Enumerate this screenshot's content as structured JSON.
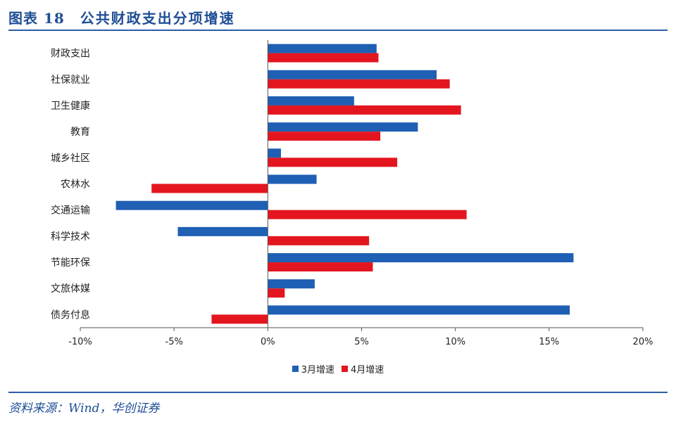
{
  "figure": {
    "label": "图表 18",
    "title": "公共财政支出分项增速",
    "source": "资料来源：Wind，华创证券"
  },
  "colors": {
    "title": "#1f4e95",
    "series_march": "#1f5fb4",
    "series_april": "#e3161f"
  },
  "chart_data": {
    "type": "bar",
    "orientation": "horizontal",
    "categories": [
      "财政支出",
      "社保就业",
      "卫生健康",
      "教育",
      "城乡社区",
      "农林水",
      "交通运输",
      "科学技术",
      "节能环保",
      "文旅体媒",
      "债务付息"
    ],
    "series": [
      {
        "name": "3月增速",
        "values": [
          5.8,
          9.0,
          4.6,
          8.0,
          0.7,
          2.6,
          -8.1,
          -4.8,
          16.3,
          2.5,
          16.1
        ]
      },
      {
        "name": "4月增速",
        "values": [
          5.9,
          9.7,
          10.3,
          6.0,
          6.9,
          -6.2,
          10.6,
          5.4,
          5.6,
          0.9,
          -3.0
        ]
      }
    ],
    "xlim": [
      -10,
      20
    ],
    "xticks": [
      "-10%",
      "-5%",
      "0%",
      "5%",
      "10%",
      "15%",
      "20%"
    ],
    "xtick_values": [
      -10,
      -5,
      0,
      5,
      10,
      15,
      20
    ],
    "legend_position": "bottom",
    "grid": false
  }
}
